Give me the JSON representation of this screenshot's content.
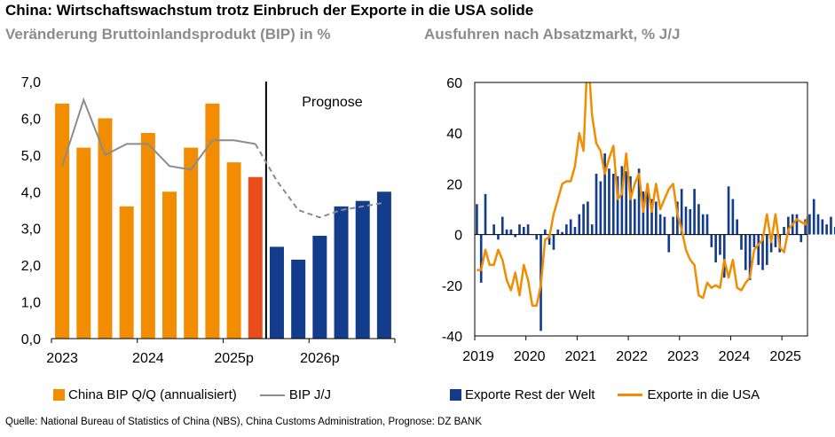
{
  "title": "China: Wirtschaftswachstum trotz Einbruch der Exporte in die USA solide",
  "source": "Quelle: National Bureau of Statistics of China (NBS), China Customs Administration, Prognose: DZ BANK",
  "colors": {
    "orange": "#F28C00",
    "red_orange": "#E84E1B",
    "navy": "#143C8C",
    "gray_line": "#8C8C8C",
    "usa_line": "#F28C00"
  },
  "chart_data": [
    {
      "id": "left",
      "type": "bar",
      "title": "Veränderung Bruttoinlandsprodukt (BIP) in %",
      "annotation": "Prognose",
      "ylim": [
        0,
        7
      ],
      "yticks": [
        "0,0",
        "1,0",
        "2,0",
        "3,0",
        "4,0",
        "5,0",
        "6,0",
        "7,0"
      ],
      "xtick_labels": [
        "2023",
        "2024",
        "2025p",
        "2026p"
      ],
      "categories": [
        "2023Q1",
        "2023Q2",
        "2023Q3",
        "2023Q4",
        "2024Q1",
        "2024Q2",
        "2024Q3",
        "2024Q4",
        "2025Q1",
        "2025Q2",
        "2025Q3",
        "2025Q4",
        "2026Q1",
        "2026Q2",
        "2026Q3",
        "2026Q4"
      ],
      "series": [
        {
          "name": "China BIP Q/Q (annualisiert)",
          "type": "bar",
          "values": [
            6.4,
            5.2,
            6.0,
            3.6,
            5.6,
            4.0,
            5.2,
            6.4,
            4.8,
            4.4,
            2.5,
            2.15,
            2.8,
            3.6,
            3.75,
            4.0
          ]
        },
        {
          "name": "BIP J/J",
          "type": "line",
          "values": [
            4.7,
            6.5,
            5.0,
            5.3,
            5.3,
            4.7,
            4.6,
            5.4,
            5.4,
            5.3,
            4.3,
            3.5,
            3.3,
            3.5,
            3.6,
            3.7
          ]
        }
      ],
      "forecast_start_index": 10
    },
    {
      "id": "right",
      "type": "line",
      "title": "Ausfuhren nach Absatzmarkt, % J/J",
      "ylim": [
        -40,
        60
      ],
      "yticks": [
        "-40",
        "-20",
        "0",
        "20",
        "40",
        "60"
      ],
      "xtick_labels": [
        "2019",
        "2020",
        "2021",
        "2022",
        "2023",
        "2024",
        "2025"
      ],
      "x_start": "2019-01",
      "series": [
        {
          "name": "Exporte Rest der Welt",
          "type": "bar",
          "values": [
            12,
            -19,
            16,
            0,
            4,
            -2,
            7,
            2,
            2,
            -1,
            4,
            3,
            4,
            0,
            -2,
            -38,
            2,
            -4,
            -6,
            2,
            1,
            4,
            6,
            3,
            8,
            12,
            13,
            4,
            24,
            21,
            32,
            26,
            24,
            23,
            27,
            25,
            23,
            14,
            26,
            17,
            20,
            14,
            13,
            8,
            7,
            -7,
            7,
            13,
            18,
            11,
            10,
            18,
            12,
            8,
            8,
            -5,
            -11,
            -8,
            -17,
            19,
            14,
            6,
            -6,
            -14,
            -18,
            -5,
            -12,
            -14,
            -12,
            -7,
            -5,
            -7,
            3,
            7,
            8,
            8,
            -3,
            6,
            8,
            14,
            8,
            6,
            4,
            7,
            3,
            -1,
            12,
            13,
            11
          ]
        },
        {
          "name": "Exporte in die USA",
          "type": "line",
          "values": [
            -14,
            -14,
            -6,
            -12,
            -12,
            -6,
            -10,
            -18,
            -22,
            -15,
            -24,
            -12,
            -18,
            -28,
            -28,
            -20,
            -2,
            -1,
            8,
            14,
            20,
            21,
            21,
            27,
            40,
            33,
            73,
            47,
            36,
            33,
            24,
            30,
            35,
            14,
            16,
            32,
            14,
            20,
            24,
            9,
            20,
            9,
            20,
            10,
            14,
            18,
            20,
            8,
            2,
            -6,
            -10,
            -12,
            -24,
            -25,
            -19,
            -21,
            -20,
            -21,
            -10,
            -17,
            -10,
            -21,
            -22,
            -19,
            -17,
            -6,
            -4,
            -2,
            8,
            -3,
            8,
            -5,
            -7,
            2,
            4,
            6,
            5,
            4,
            9,
            10,
            1,
            13,
            16,
            9,
            10,
            -2,
            -16,
            -34,
            -16
          ]
        }
      ]
    }
  ]
}
